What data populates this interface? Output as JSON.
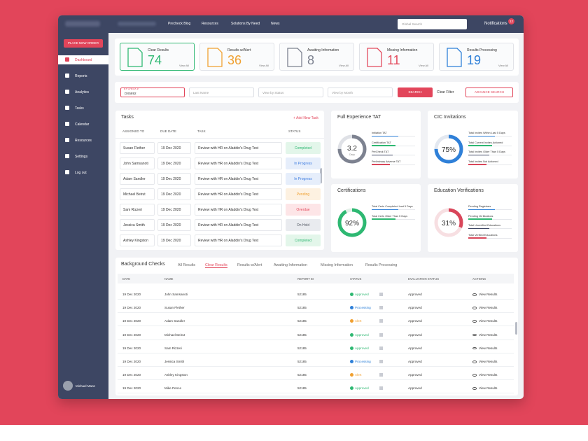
{
  "nav": {
    "links": [
      "Precheck Blog",
      "Resources",
      "Solutions By Need",
      "News"
    ],
    "search_placeholder": "Global Search",
    "notifications": "Notifications",
    "notification_count": "12"
  },
  "sidebar": {
    "button": "PLACE NEW ORDER",
    "items": [
      "Dashboard",
      "Reports",
      "Analytics",
      "Tasks",
      "Calendar",
      "Resources",
      "Settings",
      "Log out"
    ],
    "user": "Michael Mann"
  },
  "stats": [
    {
      "label": "Clear Results",
      "value": "74",
      "link": "View All",
      "color": "#2eb872"
    },
    {
      "label": "Results w/Alert",
      "value": "36",
      "link": "View All",
      "color": "#f0a030"
    },
    {
      "label": "Awaiting Information",
      "value": "8",
      "link": "View All",
      "color": "#7d8290"
    },
    {
      "label": "Missing Information",
      "value": "11",
      "link": "View All",
      "color": "#e34b5d"
    },
    {
      "label": "Results Processing",
      "value": "19",
      "link": "View All",
      "color": "#2f80d8"
    }
  ],
  "filters": {
    "search_label": "BY CHECK #",
    "search_value": "DX5892",
    "last_name": "Last Name",
    "status": "View by Status",
    "month": "View by Month",
    "search_button": "SEARCH",
    "clear": "Clear Filter",
    "advance": "ADVANCE SEARCH"
  },
  "tasks": {
    "title": "Tasks",
    "add": "+ Add New Task",
    "columns": [
      "ASSIGNED TO",
      "DUE DATE",
      "TASK",
      "STATUS"
    ],
    "rows": [
      {
        "assigned_to": "Susan Flether",
        "due_date": "19 Dec 2020",
        "task": "Review with HR on Aladdin's Drug Test",
        "status": "Completed",
        "status_color": "#2eb872",
        "status_bg": "#e3f6ea"
      },
      {
        "assigned_to": "John Samsanoti",
        "due_date": "19 Dec 2020",
        "task": "Review with HR on Aladdin's Drug Test",
        "status": "In Progress",
        "status_color": "#3c7be0",
        "status_bg": "#e6eefb"
      },
      {
        "assigned_to": "Adam Sandler",
        "due_date": "19 Dec 2020",
        "task": "Review with HR on Aladdin's Drug Test",
        "status": "In Progress",
        "status_color": "#3c7be0",
        "status_bg": "#e6eefb"
      },
      {
        "assigned_to": "Michael Beirut",
        "due_date": "19 Dec 2020",
        "task": "Review with HR on Aladdin's Drug Test",
        "status": "Pending",
        "status_color": "#f0a030",
        "status_bg": "#fdf1e1"
      },
      {
        "assigned_to": "Sam Rizzeri",
        "due_date": "19 Dec 2020",
        "task": "Review with HR on Aladdin's Drug Test",
        "status": "Overdue",
        "status_color": "#e34b5d",
        "status_bg": "#fde5e7"
      },
      {
        "assigned_to": "Jessica Smith",
        "due_date": "19 Dec 2020",
        "task": "Review with HR on Aladdin's Drug Test",
        "status": "On Hold",
        "status_color": "#555b66",
        "status_bg": "#e9ebef"
      },
      {
        "assigned_to": "Ashley Kingston",
        "due_date": "19 Dec 2020",
        "task": "Review with HR on Aladdin's Drug Test",
        "status": "Completed",
        "status_color": "#2eb872",
        "status_bg": "#e3f6ea"
      }
    ]
  },
  "widgets": [
    {
      "title": "Full Experience TAT",
      "value": {
        "value": 3.2,
        "label": "3.2"
      },
      "unit": "Days",
      "color": "#7d8290",
      "track": "#dfe1e6",
      "items": [
        "Initiation TAT",
        "Certification TAT",
        "PreCheck TAT",
        "Preliminary Adverse TAT"
      ]
    },
    {
      "title": "CIC Invitations",
      "value": {
        "value": 75,
        "label": "75%"
      },
      "color": "#2f80d8",
      "track": "#e3e8f0",
      "items": [
        "Total Invites Within Last 5 Days",
        "Total Current Invites Actioned",
        "Total Invites Older Than 5 Days",
        "Total Invites Not Actioned"
      ]
    },
    {
      "title": "Certifications",
      "value": {
        "value": 92,
        "label": "92%"
      },
      "color": "#2eb872",
      "track": "#e3f0e8",
      "items": [
        "Total Certs Completed Last 5 Days",
        "Total Certs Older Than 5 Days"
      ]
    },
    {
      "title": "Education Verifications",
      "value": {
        "value": 31,
        "label": "31%"
      },
      "color": "#d9465a",
      "track": "#f7dfe2",
      "items": [
        "Pending Registrars",
        "Pending Verifications",
        "Total Unverified Educations",
        "Total Verified Educations"
      ]
    }
  ],
  "checks": {
    "title": "Background Checks",
    "tabs": [
      "All Results",
      "Clear Results",
      "Results w/Alert",
      "Awaiting Information",
      "Missing Information",
      "Results Processing"
    ],
    "columns": [
      "DATE",
      "NAME",
      "REPORT ID",
      "STATUS",
      "EVALUATION STATUS",
      "ACTIONS"
    ],
    "rows": [
      {
        "date": "19 Dec 2020",
        "name": "John Samsanoti",
        "report_id": "52185",
        "status": "Approved",
        "status_color": "#2eb872",
        "evaluation": "Approved",
        "action": "View Results"
      },
      {
        "date": "19 Dec 2020",
        "name": "Susan Flether",
        "report_id": "52185",
        "status": "Processing",
        "status_color": "#2f80d8",
        "evaluation": "Approved",
        "action": "View Results"
      },
      {
        "date": "19 Dec 2020",
        "name": "Adam Sandler",
        "report_id": "52185",
        "status": "Alert",
        "status_color": "#f0a030",
        "evaluation": "Approved",
        "action": "View Results"
      },
      {
        "date": "19 Dec 2020",
        "name": "Michael Beirut",
        "report_id": "52185",
        "status": "Approved",
        "status_color": "#2eb872",
        "evaluation": "Approved",
        "action": "View Results"
      },
      {
        "date": "19 Dec 2020",
        "name": "Sam Rizzeri",
        "report_id": "52185",
        "status": "Approved",
        "status_color": "#2eb872",
        "evaluation": "Approved",
        "action": "View Results"
      },
      {
        "date": "19 Dec 2020",
        "name": "Jessica Smith",
        "report_id": "52185",
        "status": "Processing",
        "status_color": "#2f80d8",
        "evaluation": "Approved",
        "action": "View Results"
      },
      {
        "date": "19 Dec 2020",
        "name": "Ashley Kingston",
        "report_id": "52185",
        "status": "Alert",
        "status_color": "#f0a030",
        "evaluation": "Approved",
        "action": "View Results"
      },
      {
        "date": "19 Dec 2020",
        "name": "Mike Pence",
        "report_id": "52185",
        "status": "Approved",
        "status_color": "#2eb872",
        "evaluation": "Approved",
        "action": "View Results"
      }
    ]
  }
}
